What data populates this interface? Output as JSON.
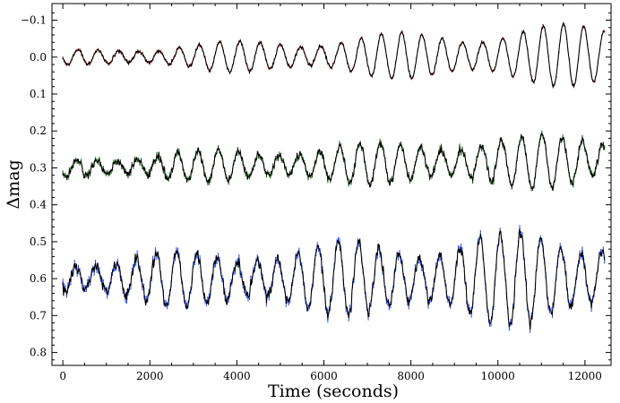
{
  "chart_data": {
    "type": "line",
    "title": "",
    "xlabel": "Time (seconds)",
    "ylabel": "Δmag",
    "xlim": [
      -250,
      12600
    ],
    "ylim": [
      0.835,
      -0.145
    ],
    "y_inverted": true,
    "x_ticks": [
      0,
      2000,
      4000,
      6000,
      8000,
      10000,
      12000
    ],
    "x_tick_labels": [
      "0",
      "2000",
      "4000",
      "6000",
      "8000",
      "10000",
      "12000"
    ],
    "y_ticks": [
      -0.1,
      0.0,
      0.1,
      0.2,
      0.3,
      0.4,
      0.5,
      0.6,
      0.7,
      0.8
    ],
    "y_tick_labels": [
      "−0.1",
      "0.0",
      "0.1",
      "0.2",
      "0.3",
      "0.4",
      "0.5",
      "0.6",
      "0.7",
      "0.8"
    ],
    "grid": false,
    "time_range": [
      0,
      12450
    ],
    "pulsation_period_s": 465,
    "series": [
      {
        "name": "top light curve",
        "color": "#8b0000",
        "line_color": "#000000",
        "mean_mag": 0.0,
        "amplitude_start": 0.02,
        "amplitude_end": 0.09,
        "mean_drift": -0.005
      },
      {
        "name": "middle light curve",
        "color": "#0a4d0a",
        "line_color": "#000000",
        "mean_mag": 0.3,
        "amplitude_start": 0.03,
        "amplitude_end": 0.08,
        "mean_drift": -0.02
      },
      {
        "name": "bottom light curve",
        "color": "#1f3fff",
        "line_color": "#000000",
        "mean_mag": 0.6,
        "amplitude_start": 0.06,
        "amplitude_end": 0.14,
        "mean_drift": 0.0
      }
    ]
  }
}
